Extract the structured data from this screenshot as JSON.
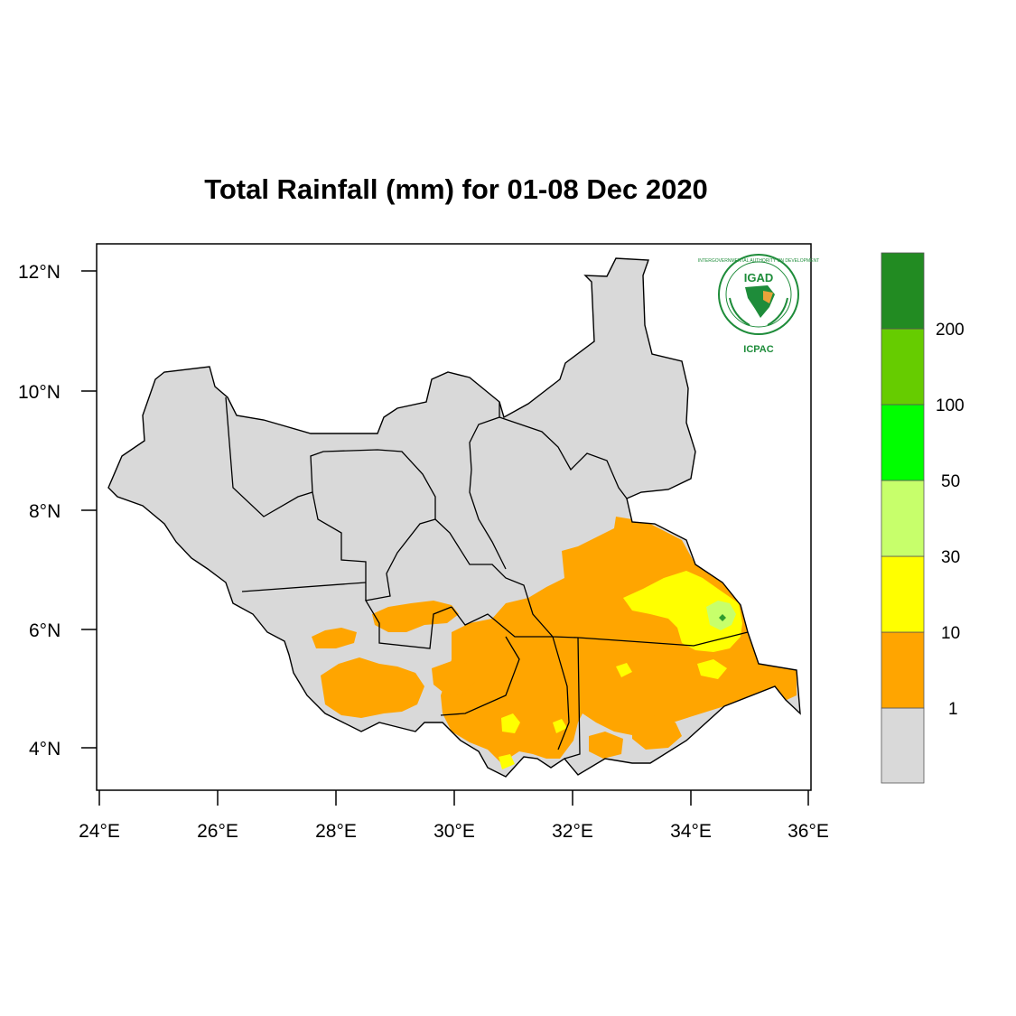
{
  "title": "Total Rainfall (mm) for 01-08 Dec 2020",
  "axes": {
    "lat_ticks": [
      "12°N",
      "10°N",
      "8°N",
      "6°N",
      "4°N"
    ],
    "lon_ticks": [
      "24°E",
      "26°E",
      "28°E",
      "30°E",
      "32°E",
      "34°E",
      "36°E"
    ]
  },
  "legend": {
    "labels": [
      "1",
      "10",
      "30",
      "50",
      "100",
      "200"
    ],
    "colors": [
      "#d9d9d9",
      "#ffa500",
      "#ffff00",
      "#c7ff6b",
      "#00ff00",
      "#66cc00",
      "#228b22"
    ]
  },
  "logo": {
    "main_text": "IGAD",
    "ring_text": "INTERGOVERNMENTAL AUTHORITY ON DEVELOPMENT",
    "sub_text": "ICPAC"
  },
  "map": {
    "country": "South Sudan",
    "colors": {
      "no_rain": "#d9d9d9",
      "cat_1_10": "#ffa500",
      "cat_10_30": "#ffff00",
      "cat_30_50": "#c7ff6b"
    }
  }
}
